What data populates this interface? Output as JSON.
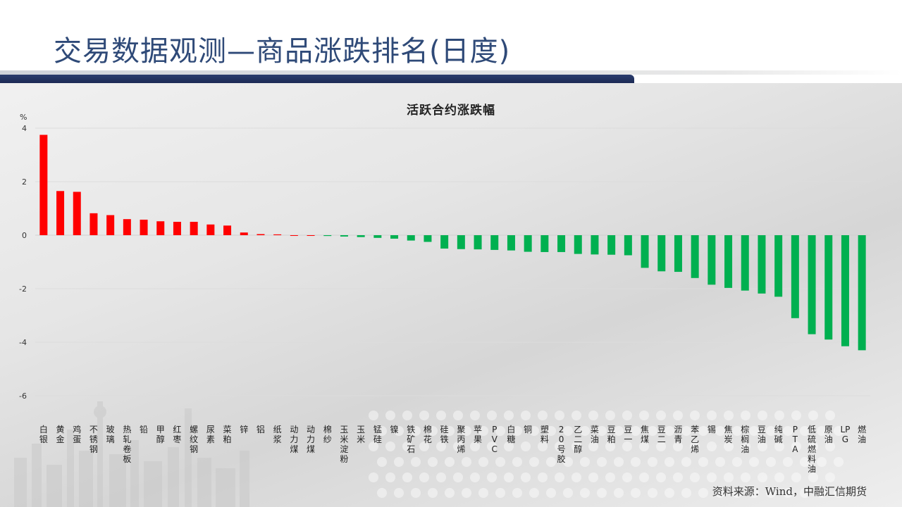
{
  "page": {
    "title": "交易数据观测—商品涨跌排名(日度)",
    "source": "资料来源：Wind，中融汇信期货"
  },
  "colors": {
    "up": "#ff0000",
    "down": "#00b050",
    "title": "#2f4a78",
    "bar_accent": "#1c2a55"
  },
  "chart_data": {
    "type": "bar",
    "title": "活跃合约涨跌幅",
    "ylabel": "%",
    "xlabel": "",
    "ylim": [
      -6,
      4
    ],
    "yticks": [
      4,
      2,
      0,
      -2,
      -4,
      -6
    ],
    "grid": true,
    "categories": [
      "白银",
      "黄金",
      "鸡蛋",
      "不锈钢",
      "玻璃",
      "热轧卷板",
      "铅",
      "甲醇",
      "红枣",
      "螺纹钢",
      "尿素",
      "菜粕",
      "锌",
      "铝",
      "纸浆",
      "动力煤",
      "动力煤",
      "棉纱",
      "玉米淀粉",
      "玉米",
      "锰硅",
      "镍",
      "铁矿石",
      "棉花",
      "硅铁",
      "聚丙烯",
      "苹果",
      "PVC",
      "白糖",
      "铜",
      "塑料",
      "20号胶",
      "乙二醇",
      "菜油",
      "豆粕",
      "豆一",
      "焦煤",
      "豆二",
      "沥青",
      "苯乙烯",
      "锡",
      "焦炭",
      "棕榈油",
      "豆油",
      "纯碱",
      "PTA",
      "低硫燃料油",
      "原油",
      "LPG",
      "燃油"
    ],
    "values": [
      3.75,
      1.65,
      1.62,
      0.82,
      0.75,
      0.6,
      0.58,
      0.52,
      0.5,
      0.5,
      0.4,
      0.36,
      0.1,
      0.04,
      0.03,
      0.0,
      0.0,
      -0.03,
      -0.05,
      -0.07,
      -0.1,
      -0.13,
      -0.2,
      -0.25,
      -0.5,
      -0.52,
      -0.53,
      -0.55,
      -0.57,
      -0.62,
      -0.63,
      -0.63,
      -0.7,
      -0.72,
      -0.73,
      -0.75,
      -1.22,
      -1.35,
      -1.37,
      -1.6,
      -1.85,
      -1.97,
      -2.07,
      -2.18,
      -2.3,
      -3.1,
      -3.7,
      -3.9,
      -4.15,
      -4.3
    ]
  }
}
